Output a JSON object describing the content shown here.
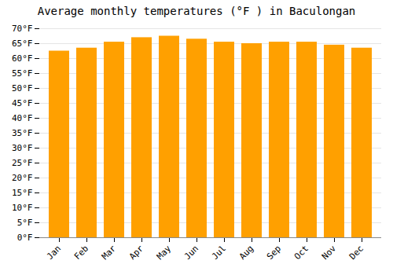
{
  "chart_data": {
    "type": "bar",
    "title": "Average monthly temperatures (°F ) in Baculongan",
    "categories": [
      "Jan",
      "Feb",
      "Mar",
      "Apr",
      "May",
      "Jun",
      "Jul",
      "Aug",
      "Sep",
      "Oct",
      "Nov",
      "Dec"
    ],
    "values": [
      62.5,
      63.5,
      65.5,
      67.0,
      67.5,
      66.5,
      65.5,
      65.0,
      65.5,
      65.5,
      64.5,
      63.5
    ],
    "color": "#FFA000",
    "ylim": [
      0,
      70
    ],
    "yticks": [
      {
        "value": 0,
        "label": "0°F"
      },
      {
        "value": 5,
        "label": "5°F"
      },
      {
        "value": 10,
        "label": "10°F"
      },
      {
        "value": 15,
        "label": "15°F"
      },
      {
        "value": 20,
        "label": "20°F"
      },
      {
        "value": 25,
        "label": "25°F"
      },
      {
        "value": 30,
        "label": "30°F"
      },
      {
        "value": 35,
        "label": "35°F"
      },
      {
        "value": 40,
        "label": "40°F"
      },
      {
        "value": 45,
        "label": "45°F"
      },
      {
        "value": 50,
        "label": "50°F"
      },
      {
        "value": 55,
        "label": "55°F"
      },
      {
        "value": 60,
        "label": "60°F"
      },
      {
        "value": 65,
        "label": "65°F"
      },
      {
        "value": 70,
        "label": "70°F"
      }
    ],
    "grid": true
  }
}
